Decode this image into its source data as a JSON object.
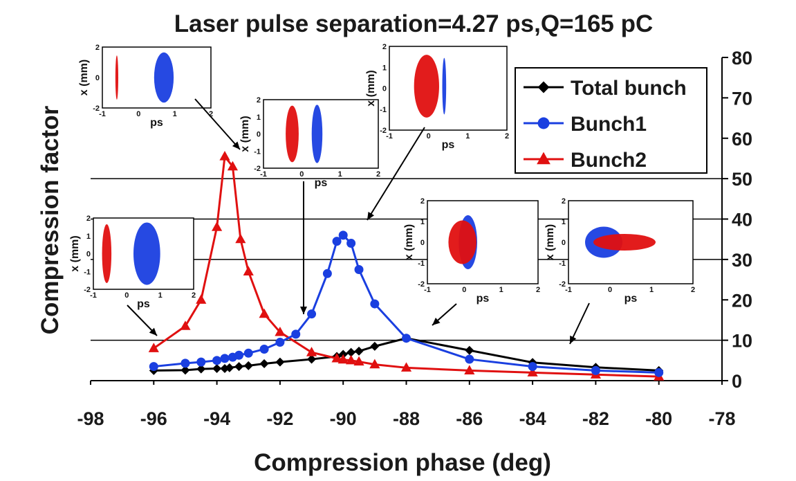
{
  "chart_data": {
    "type": "line",
    "title": "Laser pulse separation=4.27 ps,Q=165 pC",
    "xlabel": "Compression phase (deg)",
    "ylabel": "Compression factor",
    "xlim": [
      -98,
      -78
    ],
    "ylim": [
      0,
      80
    ],
    "x_ticks": [
      "-98",
      "-96",
      "-94",
      "-92",
      "-90",
      "-88",
      "-86",
      "-84",
      "-82",
      "-80",
      "-78"
    ],
    "y_ticks": [
      "0",
      "10",
      "20",
      "30",
      "40",
      "50",
      "60",
      "70",
      "80"
    ],
    "y_axis_side": "right",
    "grid_y": [
      10,
      30,
      40,
      50
    ],
    "legend_position": "top-right",
    "series": [
      {
        "name": "Total bunch",
        "color": "#000000",
        "marker": "diamond",
        "points": [
          [
            -96,
            2.5
          ],
          [
            -95,
            2.6
          ],
          [
            -94.5,
            2.9
          ],
          [
            -94,
            3.0
          ],
          [
            -93.75,
            3.0
          ],
          [
            -93.6,
            3.2
          ],
          [
            -93.3,
            3.5
          ],
          [
            -93,
            3.7
          ],
          [
            -92.5,
            4.2
          ],
          [
            -92,
            4.6
          ],
          [
            -91,
            5.3
          ],
          [
            -90.2,
            6.0
          ],
          [
            -90,
            6.5
          ],
          [
            -89.75,
            7.0
          ],
          [
            -89.5,
            7.3
          ],
          [
            -89,
            8.5
          ],
          [
            -88,
            10.5
          ],
          [
            -86,
            7.5
          ],
          [
            -84,
            4.5
          ],
          [
            -82,
            3.3
          ],
          [
            -80,
            2.5
          ]
        ]
      },
      {
        "name": "Bunch1",
        "color": "#1a3fe0",
        "marker": "circle",
        "points": [
          [
            -96,
            3.5
          ],
          [
            -95,
            4.3
          ],
          [
            -94.5,
            4.6
          ],
          [
            -94,
            5.0
          ],
          [
            -93.75,
            5.5
          ],
          [
            -93.5,
            5.8
          ],
          [
            -93.3,
            6.3
          ],
          [
            -93,
            6.8
          ],
          [
            -92.5,
            7.8
          ],
          [
            -92,
            9.5
          ],
          [
            -91.5,
            11.5
          ],
          [
            -91,
            16.5
          ],
          [
            -90.5,
            26.5
          ],
          [
            -90.2,
            34.5
          ],
          [
            -90,
            36
          ],
          [
            -89.75,
            34
          ],
          [
            -89.5,
            27.5
          ],
          [
            -89,
            19
          ],
          [
            -88,
            10.5
          ],
          [
            -86,
            5.3
          ],
          [
            -84,
            3.5
          ],
          [
            -82,
            2.5
          ],
          [
            -80,
            2.0
          ]
        ]
      },
      {
        "name": "Bunch2",
        "color": "#e01010",
        "marker": "triangle",
        "points": [
          [
            -96,
            8.0
          ],
          [
            -95,
            13.5
          ],
          [
            -94.5,
            20.0
          ],
          [
            -94,
            38.0
          ],
          [
            -93.75,
            55.5
          ],
          [
            -93.5,
            53.0
          ],
          [
            -93.25,
            35.0
          ],
          [
            -93,
            27.0
          ],
          [
            -92.5,
            16.5
          ],
          [
            -92,
            12.0
          ],
          [
            -91,
            7.0
          ],
          [
            -90.2,
            5.5
          ],
          [
            -90,
            5.2
          ],
          [
            -89.75,
            5.0
          ],
          [
            -89.5,
            4.7
          ],
          [
            -89,
            4.0
          ],
          [
            -88,
            3.2
          ],
          [
            -86,
            2.5
          ],
          [
            -84,
            2.0
          ],
          [
            -82,
            1.5
          ],
          [
            -80,
            1.0
          ]
        ]
      }
    ],
    "insets": [
      {
        "ylabel": "x (mm)",
        "xlabel": "ps",
        "y_ticks": [
          "2",
          "0",
          "-2"
        ],
        "x_ticks": [
          "-1",
          "0",
          "1",
          "2"
        ],
        "blobs": [
          {
            "color": "#e01010",
            "cx": -0.6,
            "cy": 0,
            "rx": 0.04,
            "ry": 1.45
          },
          {
            "color": "#1a3fe0",
            "cx": 0.7,
            "cy": 0,
            "rx": 0.27,
            "ry": 1.65
          }
        ]
      },
      {
        "ylabel": "x (mm)",
        "xlabel": "ps",
        "y_ticks": [
          "2",
          "1",
          "0",
          "-1",
          "-2"
        ],
        "x_ticks": [
          "-1",
          "0",
          "1",
          "2"
        ],
        "blobs": [
          {
            "color": "#e01010",
            "cx": -0.25,
            "cy": 0,
            "rx": 0.17,
            "ry": 1.65
          },
          {
            "color": "#1a3fe0",
            "cx": 0.4,
            "cy": 0,
            "rx": 0.14,
            "ry": 1.7
          }
        ]
      },
      {
        "ylabel": "x (mm)",
        "xlabel": "ps",
        "y_ticks": [
          "2",
          "1",
          "0",
          "-1",
          "-2"
        ],
        "x_ticks": [
          "-1",
          "0",
          "1",
          "2"
        ],
        "blobs": [
          {
            "color": "#e01010",
            "cx": -0.05,
            "cy": 0.1,
            "rx": 0.32,
            "ry": 1.5
          },
          {
            "color": "#1a3fe0",
            "cx": 0.4,
            "cy": 0.1,
            "rx": 0.05,
            "ry": 1.35
          }
        ]
      },
      {
        "ylabel": "x (mm)",
        "xlabel": "ps",
        "y_ticks": [
          "2",
          "1",
          "0",
          "-1",
          "-2"
        ],
        "x_ticks": [
          "-1",
          "0",
          "1",
          "2"
        ],
        "blobs": [
          {
            "color": "#e01010",
            "cx": -0.6,
            "cy": 0,
            "rx": 0.14,
            "ry": 1.65
          },
          {
            "color": "#1a3fe0",
            "cx": 0.6,
            "cy": 0,
            "rx": 0.4,
            "ry": 1.75
          }
        ]
      },
      {
        "ylabel": "x (mm)",
        "xlabel": "ps",
        "y_ticks": [
          "2",
          "1",
          "0",
          "-1",
          "-2"
        ],
        "x_ticks": [
          "-1",
          "0",
          "1",
          "2"
        ],
        "blobs": [
          {
            "color": "#1a3fe0",
            "cx": 0.1,
            "cy": 0,
            "rx": 0.25,
            "ry": 1.3
          },
          {
            "color": "#e01010",
            "cx": -0.05,
            "cy": 0,
            "rx": 0.38,
            "ry": 1.05
          }
        ]
      },
      {
        "ylabel": "x (mm)",
        "xlabel": "ps",
        "y_ticks": [
          "2",
          "1",
          "0",
          "-1",
          "-2"
        ],
        "x_ticks": [
          "-1",
          "0",
          "1",
          "2"
        ],
        "blobs": [
          {
            "color": "#1a3fe0",
            "cx": -0.15,
            "cy": 0,
            "rx": 0.45,
            "ry": 0.75
          },
          {
            "color": "#e01010",
            "cx": 0.35,
            "cy": 0,
            "rx": 0.75,
            "ry": 0.4
          }
        ]
      }
    ]
  }
}
